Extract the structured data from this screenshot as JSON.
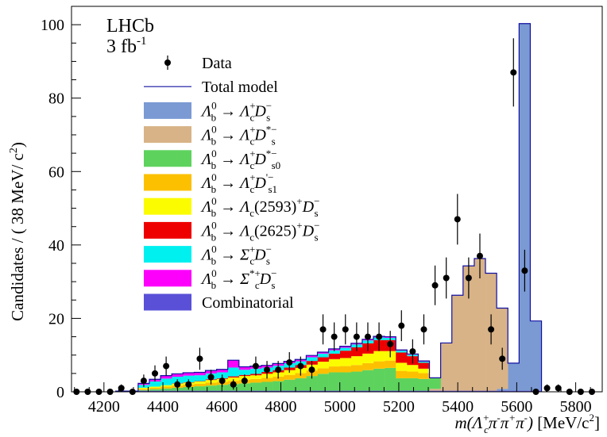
{
  "chart_data": {
    "type": "bar",
    "subtype": "stacked-histogram",
    "experiment_label": "LHCb",
    "luminosity_label": "3 fb",
    "luminosity_exponent": "-1",
    "ylabel": "Candidates / ( 38 MeV/ c",
    "ylabel_exponent": "2",
    "ylabel_close": ")",
    "xlabel": "m(Λ",
    "xlabel_tail": " [MeV/c",
    "xlabel_tail_exponent": "2",
    "xlabel_tail_close": "]",
    "xlim": [
      4090,
      5890
    ],
    "ylim": [
      0,
      105
    ],
    "x_ticks": [
      4200,
      4400,
      4600,
      4800,
      5000,
      5200,
      5400,
      5600,
      5800
    ],
    "y_ticks": [
      0,
      20,
      40,
      60,
      80,
      100
    ],
    "bin_width": 38,
    "bins_lo": [
      4240,
      4278,
      4316,
      4354,
      4392,
      4430,
      4468,
      4506,
      4544,
      4582,
      4620,
      4658,
      4696,
      4734,
      4772,
      4810,
      4848,
      4886,
      4924,
      4962,
      5000,
      5038,
      5076,
      5114,
      5152,
      5190,
      5228,
      5266,
      5304,
      5342,
      5380,
      5418,
      5456,
      5494,
      5532,
      5570,
      5608,
      5646
    ],
    "series": [
      {
        "name": "Combinatorial",
        "color": "#5a50d8",
        "values": [
          0.2,
          0.2,
          0.3,
          0.3,
          0.3,
          0.3,
          0.3,
          0.3,
          0.3,
          0.3,
          0.3,
          0.3,
          0.3,
          0.3,
          0.3,
          0.3,
          0.3,
          0.3,
          0.3,
          0.3,
          0.3,
          0.3,
          0.3,
          0.3,
          0.3,
          0.3,
          0.3,
          0.3,
          0.3,
          0.3,
          0.3,
          0.3,
          0.3,
          0.3,
          0.3,
          0.3,
          0.3,
          0.3
        ]
      },
      {
        "name": "Λb0 → Λc+ Ds-",
        "color": "#7b9ad4",
        "values": [
          0,
          0,
          0,
          0,
          0,
          0,
          0,
          0,
          0,
          0,
          0,
          0,
          0,
          0,
          0,
          0,
          0,
          0,
          0,
          0,
          0,
          0,
          0,
          0,
          0,
          0,
          0,
          0,
          0,
          0,
          0,
          0,
          0,
          0,
          0.5,
          7.5,
          100,
          19
        ]
      },
      {
        "name": "Λb0 → Λc+ Ds*-",
        "color": "#d8b387",
        "values": [
          0,
          0,
          0,
          0,
          0,
          0,
          0,
          0,
          0,
          0,
          0,
          0,
          0,
          0,
          0,
          0,
          0,
          0,
          0,
          0,
          0,
          0,
          0,
          0,
          0,
          0,
          0,
          0,
          0.5,
          13,
          26,
          34,
          36,
          32,
          22,
          0,
          0,
          0
        ]
      },
      {
        "name": "Λb0 → Λc+ Ds0*-",
        "color": "#5dd35d",
        "values": [
          0,
          0,
          0.2,
          0.4,
          0.6,
          0.8,
          1,
          1.2,
          1.4,
          1.6,
          1.8,
          2,
          2.2,
          2.4,
          2.6,
          3,
          3.4,
          4,
          4.6,
          5,
          5,
          5.2,
          5.6,
          6,
          6.2,
          3.4,
          3.4,
          3.2,
          3,
          0,
          0,
          0,
          0,
          0,
          0,
          0,
          0,
          0
        ]
      },
      {
        "name": "Λb0 → Λc+ Ds1'-",
        "color": "#fcc000",
        "values": [
          0,
          0,
          0.3,
          0.4,
          0.5,
          0.6,
          0.7,
          0.7,
          0.8,
          0.8,
          0.9,
          1,
          1,
          1.1,
          1.2,
          1.3,
          1.4,
          1.5,
          1.5,
          1.6,
          1.7,
          1.8,
          1.9,
          2,
          2,
          2,
          1.8,
          1.6,
          0,
          0,
          0,
          0,
          0,
          0,
          0,
          0,
          0,
          0
        ]
      },
      {
        "name": "Λb0 → Λc(2593)+ Ds-",
        "color": "#fcfc00",
        "values": [
          0,
          0,
          0.3,
          0.3,
          0.4,
          0.5,
          0.5,
          0.6,
          0.7,
          0.8,
          0.9,
          1,
          1,
          1.1,
          1.2,
          1.3,
          1.4,
          1.6,
          1.8,
          2,
          2.2,
          2.4,
          2.6,
          2.8,
          2.6,
          2.2,
          1.8,
          1.2,
          0,
          0,
          0,
          0,
          0,
          0,
          0,
          0,
          0,
          0
        ]
      },
      {
        "name": "Λb0 → Λc(2625)+ Ds-",
        "color": "#ee0000",
        "values": [
          0,
          0,
          0,
          0,
          0,
          0.1,
          0.1,
          0.1,
          0.2,
          0.2,
          0.3,
          0.3,
          0.4,
          0.5,
          0.6,
          0.7,
          0.8,
          1,
          1.2,
          1.5,
          2,
          2.4,
          2.8,
          3,
          3,
          2.8,
          2.4,
          1.6,
          0,
          0,
          0,
          0,
          0,
          0,
          0,
          0,
          0,
          0
        ]
      },
      {
        "name": "Λb0 → Σc+ Ds-",
        "color": "#00f0f0",
        "values": [
          0,
          0,
          0.8,
          1.4,
          1.8,
          1.8,
          1.8,
          1.6,
          1.6,
          1.6,
          2.4,
          1.4,
          1.4,
          1.2,
          1.2,
          1.2,
          1,
          1,
          1,
          0.9,
          0.8,
          0.8,
          0.8,
          0.7,
          0.6,
          0.5,
          0.4,
          0.3,
          0,
          0,
          0,
          0,
          0,
          0,
          0,
          0,
          0,
          0
        ]
      },
      {
        "name": "Λb0 → Σc*+ Ds-",
        "color": "#fc00fc",
        "values": [
          0,
          0,
          0.4,
          0.6,
          0.8,
          0.8,
          0.8,
          0.8,
          0.8,
          0.8,
          2,
          0.8,
          0.7,
          0.6,
          0.6,
          0.5,
          0.5,
          0.5,
          0.4,
          0.4,
          0.4,
          0.3,
          0.3,
          0.3,
          0.3,
          0.2,
          0.2,
          0.2,
          0,
          0,
          0,
          0,
          0,
          0,
          0,
          0,
          0,
          0
        ]
      }
    ],
    "total_model_name": "Total model",
    "total_model_color": "#1010a0",
    "data_series": {
      "name": "Data",
      "x": [
        4107,
        4145,
        4183,
        4221,
        4259,
        4297,
        4335,
        4373,
        4411,
        4449,
        4487,
        4525,
        4563,
        4601,
        4639,
        4677,
        4715,
        4753,
        4791,
        4829,
        4867,
        4905,
        4943,
        4981,
        5019,
        5057,
        5095,
        5133,
        5171,
        5209,
        5247,
        5285,
        5323,
        5361,
        5399,
        5437,
        5475,
        5513,
        5551,
        5589,
        5627,
        5665,
        5703,
        5741,
        5779,
        5817,
        5855
      ],
      "y": [
        0,
        0,
        0,
        0,
        1,
        0,
        3,
        5,
        7,
        2,
        2,
        9,
        4,
        3,
        2,
        3,
        7,
        6,
        6,
        8,
        7,
        6,
        17,
        15,
        17,
        15,
        15,
        15,
        13,
        18,
        11,
        17,
        29,
        31,
        47,
        31,
        37,
        17,
        9,
        87,
        33,
        0,
        1,
        1,
        0,
        0,
        0
      ],
      "err": [
        0,
        0,
        0,
        0,
        1,
        0,
        1.7,
        2.2,
        2.6,
        1.4,
        1.4,
        3,
        2,
        1.7,
        1.4,
        1.7,
        2.6,
        2.4,
        2.4,
        2.8,
        2.6,
        2.4,
        4.1,
        3.9,
        4.1,
        3.9,
        3.9,
        3.9,
        3.6,
        4.2,
        3.3,
        4.1,
        5.4,
        5.6,
        6.9,
        5.6,
        6.1,
        4.1,
        3,
        9.3,
        5.7,
        0,
        1,
        1,
        0,
        0,
        0
      ]
    },
    "legend": {
      "placement": "top-left",
      "entries": [
        {
          "label": "Data",
          "kind": "marker"
        },
        {
          "label": "Total model",
          "kind": "line"
        },
        {
          "parent": "Λ",
          "parent_sup": "0",
          "parent_sub": "b",
          "arrow": "→",
          "daughter": "Λ",
          "daughter_sup": "+",
          "daughter_sub": "c",
          "mid": "",
          "second": "D",
          "second_sup": "−",
          "second_sub": "s",
          "color": "#7b9ad4"
        },
        {
          "parent": "Λ",
          "parent_sup": "0",
          "parent_sub": "b",
          "arrow": "→",
          "daughter": "Λ",
          "daughter_sup": "+",
          "daughter_sub": "c",
          "mid": "",
          "second": "D",
          "second_sup": "*−",
          "second_sub": "s",
          "color": "#d8b387"
        },
        {
          "parent": "Λ",
          "parent_sup": "0",
          "parent_sub": "b",
          "arrow": "→",
          "daughter": "Λ",
          "daughter_sup": "+",
          "daughter_sub": "c",
          "mid": "",
          "second": "D",
          "second_sup": "*−",
          "second_sub": "s0",
          "color": "#5dd35d"
        },
        {
          "parent": "Λ",
          "parent_sup": "0",
          "parent_sub": "b",
          "arrow": "→",
          "daughter": "Λ",
          "daughter_sup": "+",
          "daughter_sub": "c",
          "mid": "",
          "second": "D",
          "second_sup": "'−",
          "second_sub": "s1",
          "color": "#fcc000"
        },
        {
          "parent": "Λ",
          "parent_sup": "0",
          "parent_sub": "b",
          "arrow": "→",
          "daughter": "Λ",
          "daughter_sup": "",
          "daughter_sub": "c",
          "mid": "(2593)",
          "mid_sup": "+",
          "second": "D",
          "second_sup": "−",
          "second_sub": "s",
          "color": "#fcfc00"
        },
        {
          "parent": "Λ",
          "parent_sup": "0",
          "parent_sub": "b",
          "arrow": "→",
          "daughter": "Λ",
          "daughter_sup": "",
          "daughter_sub": "c",
          "mid": "(2625)",
          "mid_sup": "+",
          "second": "D",
          "second_sup": "−",
          "second_sub": "s",
          "color": "#ee0000"
        },
        {
          "parent": "Λ",
          "parent_sup": "0",
          "parent_sub": "b",
          "arrow": "→",
          "daughter": "Σ",
          "daughter_sup": "+",
          "daughter_sub": "c",
          "mid": "",
          "second": "D",
          "second_sup": "−",
          "second_sub": "s",
          "color": "#00f0f0"
        },
        {
          "parent": "Λ",
          "parent_sup": "0",
          "parent_sub": "b",
          "arrow": "→",
          "daughter": "Σ",
          "daughter_sup": "*+",
          "daughter_sub": "c",
          "mid": "",
          "second": "D",
          "second_sup": "−",
          "second_sub": "s",
          "color": "#fc00fc"
        },
        {
          "label": "Combinatorial",
          "kind": "box",
          "color": "#5a50d8"
        }
      ]
    }
  }
}
